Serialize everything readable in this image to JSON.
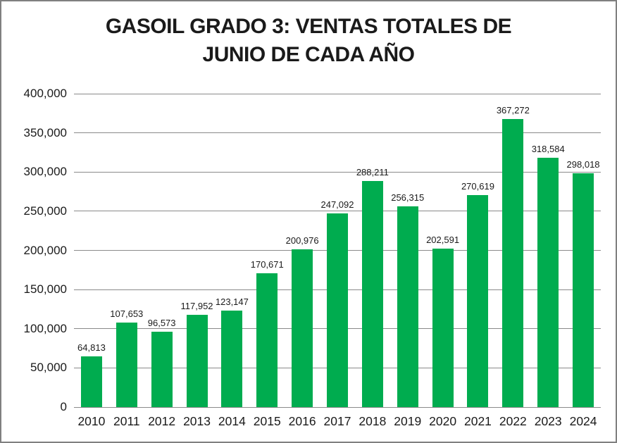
{
  "window": {
    "background_color": "#ffffff",
    "border_color": "#808080"
  },
  "chart_data": {
    "type": "bar",
    "title": "GASOIL GRADO 3: VENTAS TOTALES DE JUNIO DE CADA AÑO",
    "title_lines": [
      "GASOIL GRADO 3: VENTAS TOTALES DE",
      "JUNIO DE CADA AÑO"
    ],
    "xlabel": "",
    "ylabel": "",
    "categories": [
      "2010",
      "2011",
      "2012",
      "2013",
      "2014",
      "2015",
      "2016",
      "2017",
      "2018",
      "2019",
      "2020",
      "2021",
      "2022",
      "2023",
      "2024"
    ],
    "values": [
      64813,
      107653,
      96573,
      117952,
      123147,
      170671,
      200976,
      247092,
      288211,
      256315,
      202591,
      270619,
      367272,
      318584,
      298018
    ],
    "value_labels": [
      "64,813",
      "107,653",
      "96,573",
      "117,952",
      "123,147",
      "170,671",
      "200,976",
      "247,092",
      "288,211",
      "256,315",
      "202,591",
      "270,619",
      "367,272",
      "318,584",
      "298,018"
    ],
    "ylim": [
      0,
      400000
    ],
    "ytick_step": 50000,
    "yticks": [
      {
        "value": 0,
        "label": "0"
      },
      {
        "value": 50000,
        "label": "50,000"
      },
      {
        "value": 100000,
        "label": "100,000"
      },
      {
        "value": 150000,
        "label": "150,000"
      },
      {
        "value": 200000,
        "label": "200,000"
      },
      {
        "value": 250000,
        "label": "250,000"
      },
      {
        "value": 300000,
        "label": "300,000"
      },
      {
        "value": 350000,
        "label": "350,000"
      },
      {
        "value": 400000,
        "label": "400,000"
      }
    ],
    "grid": true,
    "legend_position": "none",
    "bar_color": "#00ac4f",
    "gridline_color": "#8a8a8a",
    "text_color": "#1a1a1a"
  }
}
